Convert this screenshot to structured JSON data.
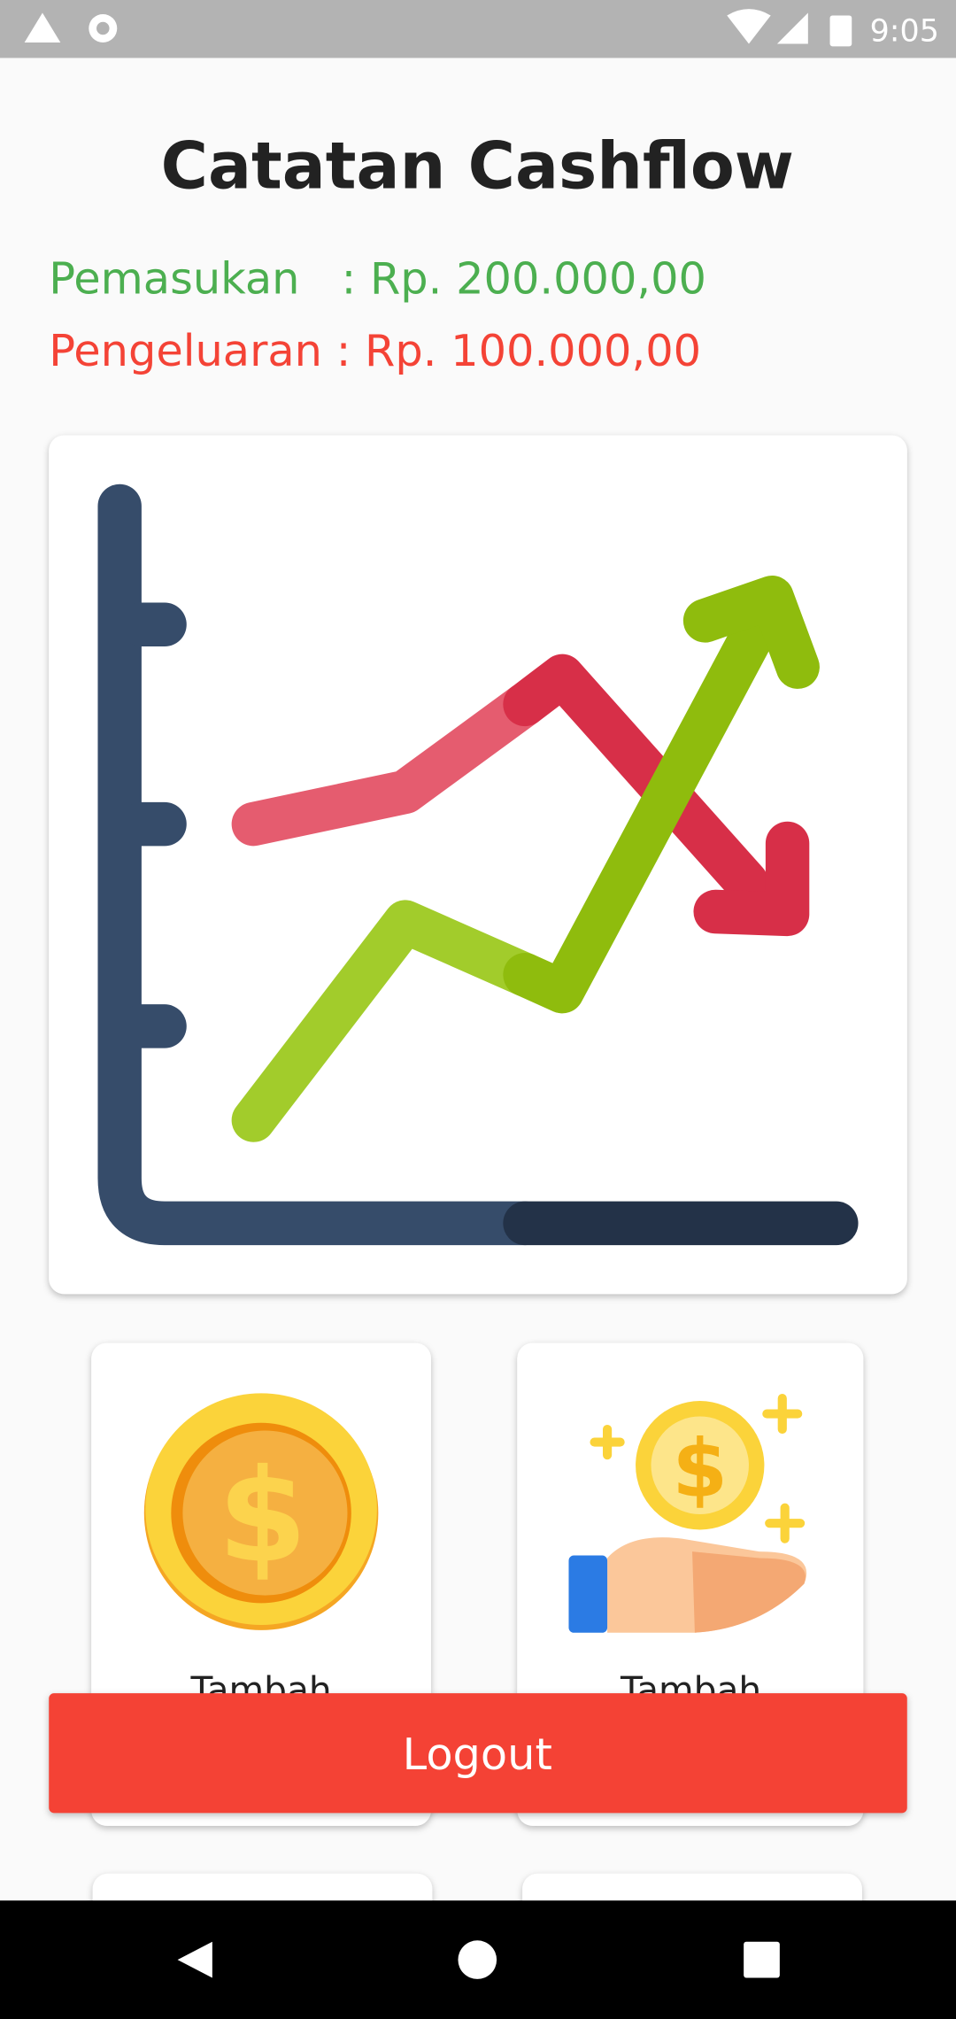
{
  "status_bar": {
    "time": "9:05"
  },
  "header": {
    "title": "Catatan Cashflow"
  },
  "summary": {
    "income": "Pemasukan   : Rp. 200.000,00",
    "expense": "Pengeluaran : Rp. 100.000,00"
  },
  "menu": {
    "items": [
      {
        "label": "Tambah"
      },
      {
        "label": "Tambah"
      }
    ]
  },
  "logout": {
    "label": "Logout"
  }
}
